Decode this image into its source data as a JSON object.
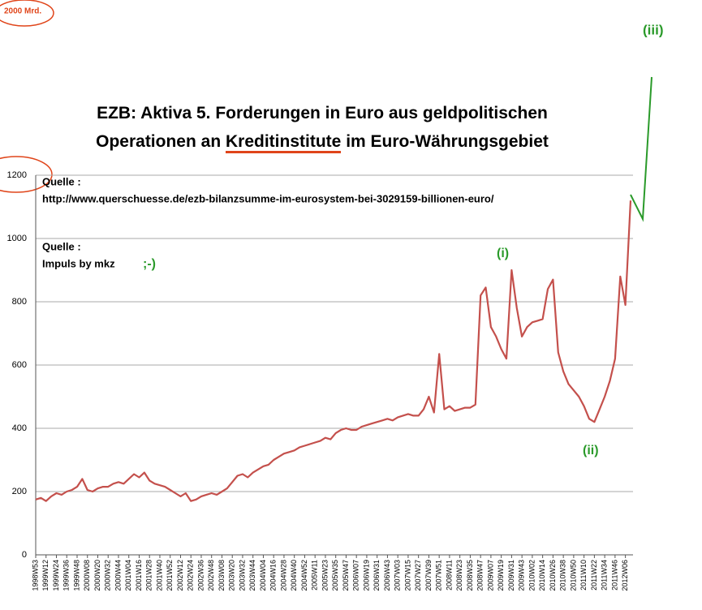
{
  "chart_data": {
    "type": "line",
    "title_line1": "EZB: Aktiva 5. Forderungen in Euro aus geldpolitischen",
    "title_line2_start": "Operationen an",
    "title_line2_highlight": "Kreditinstitute",
    "title_line2_end": "im Euro-Währungsgebiet",
    "categories": [
      "1998W53",
      null,
      "1999W12",
      null,
      "1999W24",
      null,
      "1999W36",
      null,
      "1999W48",
      null,
      "2000W08",
      null,
      "2000W20",
      null,
      "2000W32",
      null,
      "2000W44",
      null,
      "2001W04",
      null,
      "2001W16",
      null,
      "2001W28",
      null,
      "2001W40",
      null,
      "2001W52",
      null,
      "2002W12",
      null,
      "2002W24",
      null,
      "2002W36",
      null,
      "2002W48",
      null,
      "2003W08",
      null,
      "2003W20",
      null,
      "2003W32",
      null,
      "2003W44",
      null,
      "2004W04",
      null,
      "2004W16",
      null,
      "2004W28",
      null,
      "2004W40",
      null,
      "2004W52",
      null,
      "2005W11",
      null,
      "2005W23",
      null,
      "2005W35",
      null,
      "2005W47",
      null,
      "2006W07",
      null,
      "2006W19",
      null,
      "2006W31",
      null,
      "2006W43",
      null,
      "2007W03",
      null,
      "2007W15",
      null,
      "2007W27",
      null,
      "2007W39",
      null,
      "2007W51",
      null,
      "2008W11",
      null,
      "2008W23",
      null,
      "2008W35",
      null,
      "2008W47",
      null,
      "2009W07",
      null,
      "2009W19",
      null,
      "2009W31",
      null,
      "2009W43",
      null,
      "2010W02",
      null,
      "2010W14",
      null,
      "2010W26",
      null,
      "2010W38",
      null,
      "2010W50",
      null,
      "2011W10",
      null,
      "2011W22",
      null,
      "2011W34",
      null,
      "2011W46",
      null,
      "2012W06",
      null
    ],
    "values": [
      175,
      180,
      170,
      185,
      195,
      190,
      200,
      205,
      215,
      240,
      205,
      200,
      210,
      215,
      215,
      225,
      230,
      225,
      240,
      255,
      245,
      260,
      235,
      225,
      220,
      215,
      205,
      195,
      185,
      195,
      170,
      175,
      185,
      190,
      195,
      190,
      200,
      210,
      230,
      250,
      255,
      245,
      260,
      270,
      280,
      285,
      300,
      310,
      320,
      325,
      330,
      340,
      345,
      350,
      355,
      360,
      370,
      365,
      385,
      395,
      400,
      395,
      395,
      405,
      410,
      415,
      420,
      425,
      430,
      425,
      435,
      440,
      445,
      440,
      440,
      460,
      500,
      450,
      635,
      460,
      470,
      455,
      460,
      465,
      465,
      475,
      820,
      845,
      720,
      690,
      650,
      620,
      900,
      780,
      690,
      720,
      735,
      740,
      745,
      840,
      870,
      640,
      580,
      540,
      520,
      500,
      470,
      430,
      420,
      460,
      500,
      550,
      620,
      880,
      790,
      1120
    ],
    "color": "#c4504c",
    "ylim": [
      0,
      1200
    ],
    "yticks": [
      0,
      200,
      400,
      600,
      800,
      1000,
      1200
    ],
    "grid": true,
    "annotations": [
      {
        "text": "2000 Mrd.",
        "color": "#e0451a"
      },
      {
        "text": "(iii)",
        "color": "#2a9a2a"
      },
      {
        "text": "(i)",
        "color": "#2a9a2a"
      },
      {
        "text": "(ii)",
        "color": "#2a9a2a"
      },
      {
        "text": ";-)",
        "color": "#2a9a2a"
      },
      {
        "text": "Quelle :",
        "color": "#000000"
      },
      {
        "text": "http://www.querschuesse.de/ezb-bilanzsumme-im-eurosystem-bei-3029159-billionen-euro/",
        "color": "#000000"
      },
      {
        "text": "Quelle :",
        "color": "#000000"
      },
      {
        "text": "Impuls by mkz",
        "color": "#000000"
      }
    ]
  }
}
